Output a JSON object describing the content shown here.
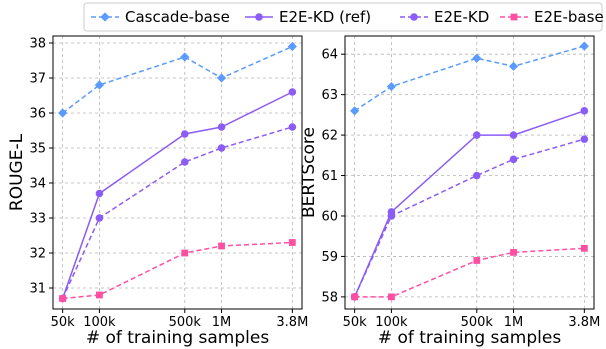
{
  "colors": {
    "cascade": "#5b9bff",
    "e2e_kd_ref": "#8b5cf6",
    "e2e_kd": "#8b5cf6",
    "e2e_base": "#ff4fa3",
    "grid": "#b5b5b5"
  },
  "legend": [
    {
      "name": "Cascade-base",
      "marker": "diamond",
      "dash": true,
      "color": "#5b9bff"
    },
    {
      "name": "E2E-KD (ref)",
      "marker": "circle",
      "dash": false,
      "color": "#8b5cf6"
    },
    {
      "name": "E2E-KD",
      "marker": "circle",
      "dash": true,
      "color": "#8b5cf6"
    },
    {
      "name": "E2E-base",
      "marker": "square",
      "dash": true,
      "color": "#ff4fa3"
    }
  ],
  "chart_data": [
    {
      "type": "line",
      "xscale": "log",
      "x": [
        "50k",
        "100k",
        "500k",
        "1M",
        "3.8M"
      ],
      "x_values": [
        50000,
        100000,
        500000,
        1000000,
        3800000
      ],
      "xlabel": "# of training samples",
      "ylabel": "ROUGE-L",
      "ylim": [
        30.4,
        38.2
      ],
      "yticks": [
        31,
        32,
        33,
        34,
        35,
        36,
        37,
        38
      ],
      "grid": true,
      "series": [
        {
          "name": "Cascade-base",
          "values": [
            36.0,
            36.8,
            37.6,
            37.0,
            37.9
          ]
        },
        {
          "name": "E2E-KD (ref)",
          "values": [
            30.7,
            33.7,
            35.4,
            35.6,
            36.6
          ]
        },
        {
          "name": "E2E-KD",
          "values": [
            30.7,
            33.0,
            34.6,
            35.0,
            35.6
          ]
        },
        {
          "name": "E2E-base",
          "values": [
            30.7,
            30.8,
            32.0,
            32.2,
            32.3
          ]
        }
      ]
    },
    {
      "type": "line",
      "xscale": "log",
      "x": [
        "50k",
        "100k",
        "500k",
        "1M",
        "3.8M"
      ],
      "x_values": [
        50000,
        100000,
        500000,
        1000000,
        3800000
      ],
      "xlabel": "# of training samples",
      "ylabel": "BERTScore",
      "ylim": [
        57.7,
        64.45
      ],
      "yticks": [
        58,
        59,
        60,
        61,
        62,
        63,
        64
      ],
      "grid": true,
      "series": [
        {
          "name": "Cascade-base",
          "values": [
            62.6,
            63.2,
            63.9,
            63.7,
            64.2
          ]
        },
        {
          "name": "E2E-KD (ref)",
          "values": [
            58.0,
            60.1,
            62.0,
            62.0,
            62.6
          ]
        },
        {
          "name": "E2E-KD",
          "values": [
            58.0,
            60.0,
            61.0,
            61.4,
            61.9
          ]
        },
        {
          "name": "E2E-base",
          "values": [
            58.0,
            58.0,
            58.9,
            59.1,
            59.2
          ]
        }
      ]
    }
  ]
}
